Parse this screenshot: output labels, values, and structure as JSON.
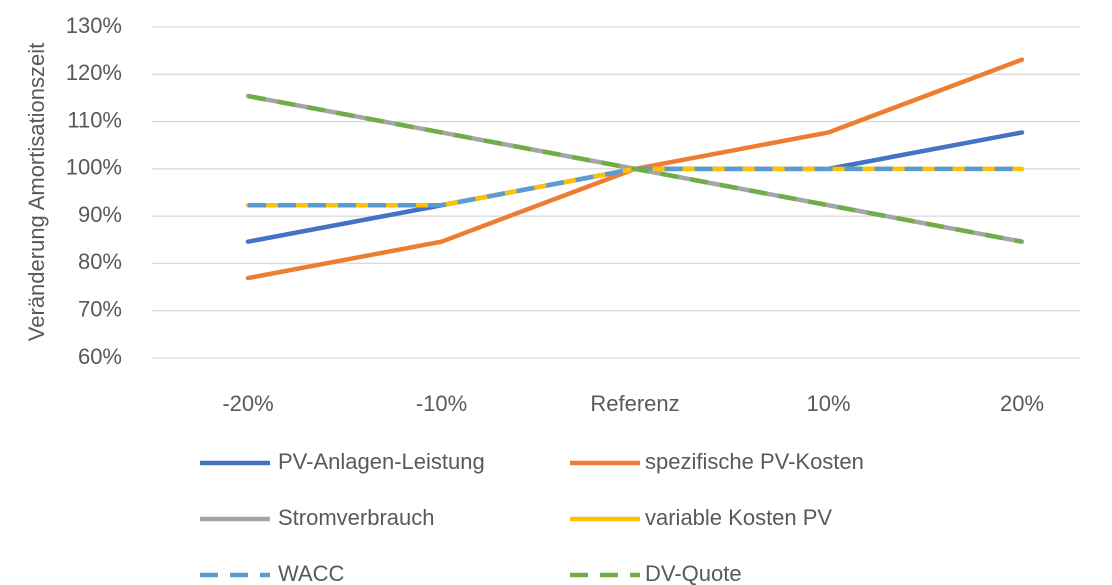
{
  "chart_data": {
    "type": "line",
    "y_label": "Veränderung Amortisationszeit",
    "categories": [
      "-20%",
      "-10%",
      "Referenz",
      "10%",
      "20%"
    ],
    "series": [
      {
        "name": "PV-Anlagen-Leistung",
        "color": "#4472c4",
        "dashed": false,
        "values": [
          84.6,
          92.3,
          100,
          100,
          107.7
        ]
      },
      {
        "name": "spezifische PV-Kosten",
        "color": "#ed7d31",
        "dashed": false,
        "values": [
          76.9,
          84.6,
          100,
          107.7,
          123.1
        ]
      },
      {
        "name": "Stromverbrauch",
        "color": "#a5a5a5",
        "dashed": false,
        "values": [
          115.4,
          107.7,
          100,
          92.3,
          84.6
        ]
      },
      {
        "name": "variable Kosten PV",
        "color": "#ffc000",
        "dashed": false,
        "values": [
          92.3,
          92.3,
          100,
          100,
          100
        ]
      },
      {
        "name": "WACC",
        "color": "#5b9bd5",
        "dashed": true,
        "values": [
          92.3,
          92.3,
          100,
          100,
          100
        ]
      },
      {
        "name": "DV-Quote",
        "color": "#70ad47",
        "dashed": true,
        "values": [
          115.4,
          107.7,
          100,
          92.3,
          84.6
        ]
      }
    ],
    "ylim": [
      60,
      130
    ],
    "yticks": [
      {
        "value": 60,
        "label": "60%"
      },
      {
        "value": 70,
        "label": "70%"
      },
      {
        "value": 80,
        "label": "80%"
      },
      {
        "value": 90,
        "label": "90%"
      },
      {
        "value": 100,
        "label": "100%"
      },
      {
        "value": 110,
        "label": "110%"
      },
      {
        "value": 120,
        "label": "120%"
      },
      {
        "value": 130,
        "label": "130%"
      }
    ],
    "grid": true,
    "legend": "bottom"
  }
}
